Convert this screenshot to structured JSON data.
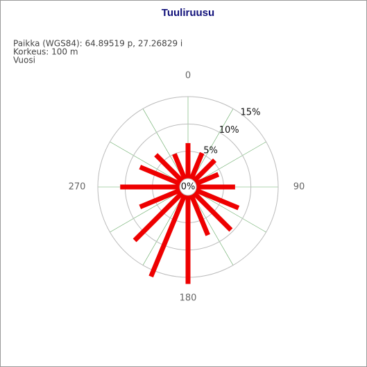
{
  "chart_data": {
    "type": "polar-bar",
    "title": "Tuuliruusu",
    "info": [
      "Paikka (WGS84): 64.89519 p, 27.26829 i",
      "Korkeus: 100 m",
      "Vuosi"
    ],
    "x": [
      0,
      22.5,
      45,
      67.5,
      90,
      112.5,
      135,
      157.5,
      180,
      202.5,
      225,
      247.5,
      270,
      292.5,
      315,
      337.5
    ],
    "values": [
      6.5,
      5.2,
      5.4,
      4.5,
      7.1,
      8.5,
      9.6,
      8,
      16.2,
      16.2,
      12.3,
      8,
      10.9,
      8,
      6.8,
      5
    ],
    "color": "#ee0000",
    "xticks": [
      0,
      90,
      180,
      270
    ],
    "ylim": [
      0,
      15
    ],
    "yticks": [
      {
        "value": 0,
        "label": "0%"
      },
      {
        "value": 5,
        "label": "5%"
      },
      {
        "value": 10,
        "label": "10%"
      },
      {
        "value": 15,
        "label": "15%"
      }
    ],
    "grid": true
  }
}
